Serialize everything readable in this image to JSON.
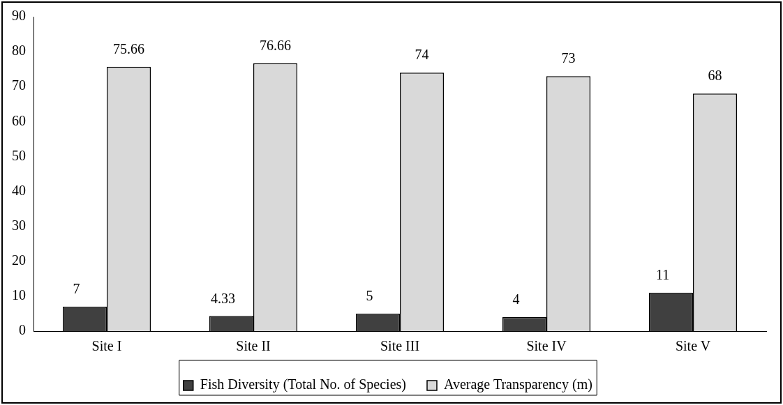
{
  "chart_data": {
    "type": "bar",
    "categories": [
      "Site I",
      "Site II",
      "Site III",
      "Site IV",
      "Site V"
    ],
    "series": [
      {
        "name": "Fish Diversity (Total No. of Species)",
        "color": "#404040",
        "values": [
          7,
          4.33,
          5,
          4,
          11
        ]
      },
      {
        "name": "Average Transparency (m)",
        "color": "#d9d9d9",
        "values": [
          75.66,
          76.66,
          74,
          73,
          68
        ]
      }
    ],
    "ylim": [
      0,
      90
    ],
    "yticks": [
      0,
      10,
      20,
      30,
      40,
      50,
      60,
      70,
      80,
      90
    ],
    "data_labels": true,
    "legend": "bottom",
    "grid": false
  }
}
